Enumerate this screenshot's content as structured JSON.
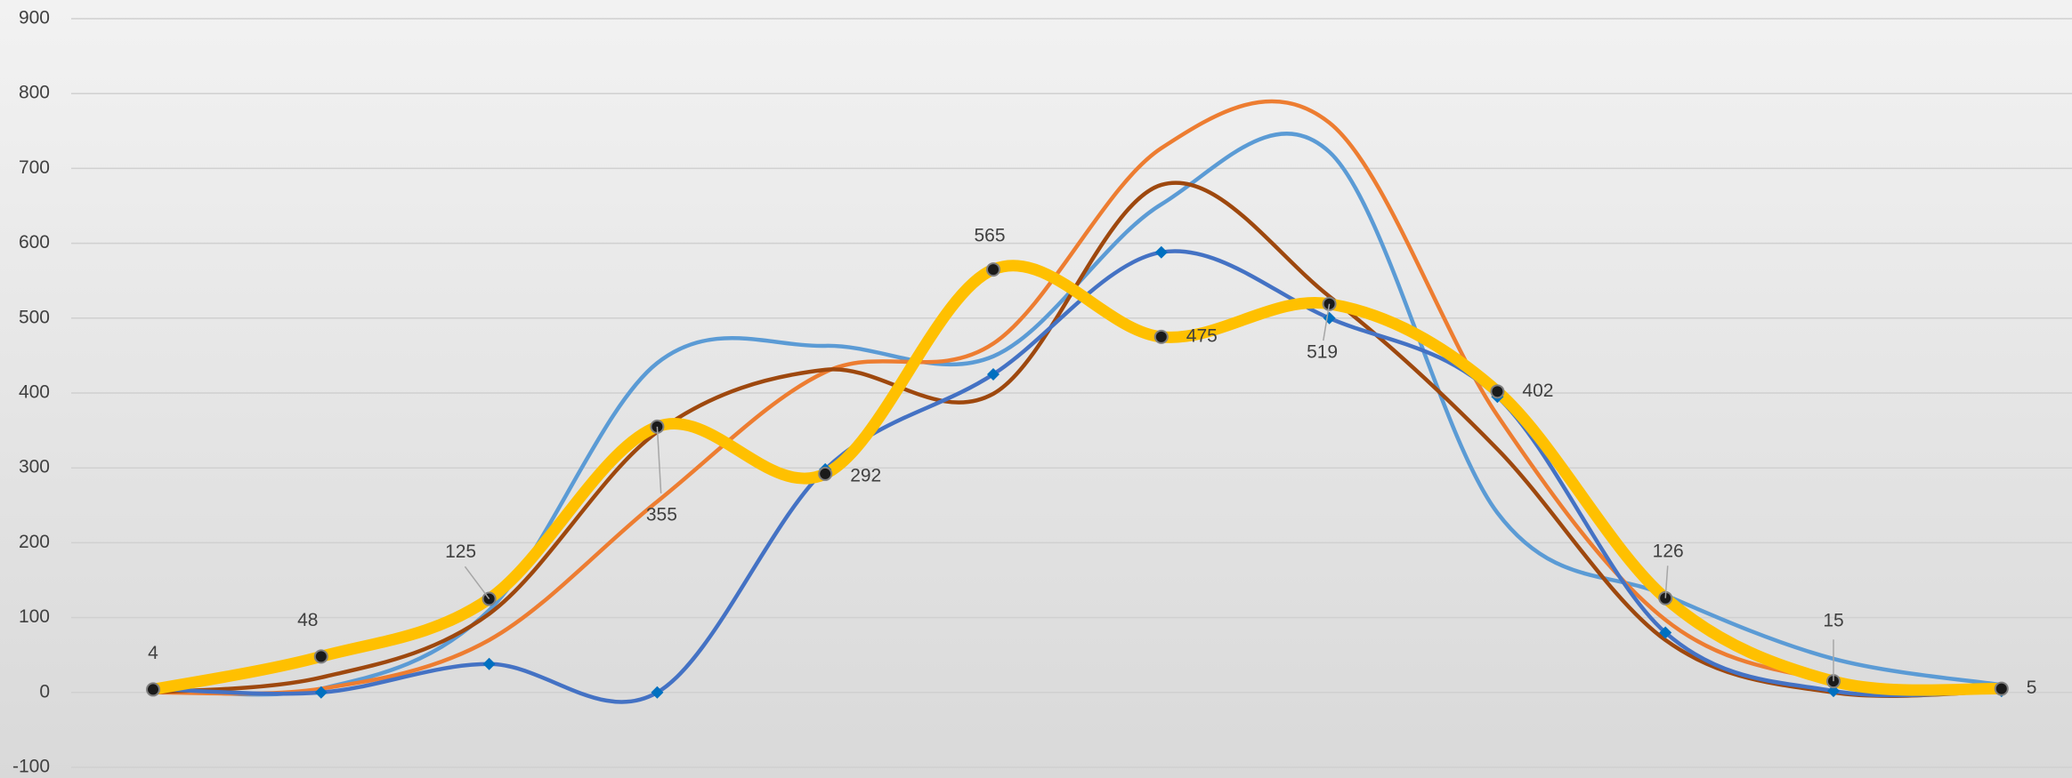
{
  "chart_data": {
    "type": "line",
    "categories": [
      null,
      null,
      null,
      null,
      null,
      null,
      null,
      null,
      null,
      null,
      null,
      null
    ],
    "series": [
      {
        "color": "#5b9bd5",
        "values": [
          5,
          5,
          110,
          440,
          463,
          449,
          652,
          722,
          240,
          130,
          45,
          10
        ]
      },
      {
        "color": "#ed7d31",
        "values": [
          0,
          5,
          70,
          255,
          428,
          466,
          727,
          761,
          370,
          97,
          15,
          3
        ]
      },
      {
        "color": "#9e480e",
        "values": [
          0,
          20,
          105,
          348,
          431,
          399,
          678,
          529,
          325,
          70,
          0,
          2
        ]
      },
      {
        "color": "#4472c4",
        "marker": "diamond",
        "values": [
          5,
          0,
          38,
          0,
          298,
          425,
          588,
          500,
          395,
          80,
          2,
          2
        ]
      },
      {
        "color": "#ffc000",
        "marker": "circle",
        "data_labels": true,
        "values": [
          4,
          48,
          125,
          355,
          292,
          565,
          475,
          519,
          402,
          126,
          15,
          5
        ]
      }
    ],
    "ylim": [
      -100,
      900
    ],
    "yticks": [
      -100,
      0,
      100,
      200,
      300,
      400,
      500,
      600,
      700,
      800,
      900
    ],
    "grid": true
  }
}
